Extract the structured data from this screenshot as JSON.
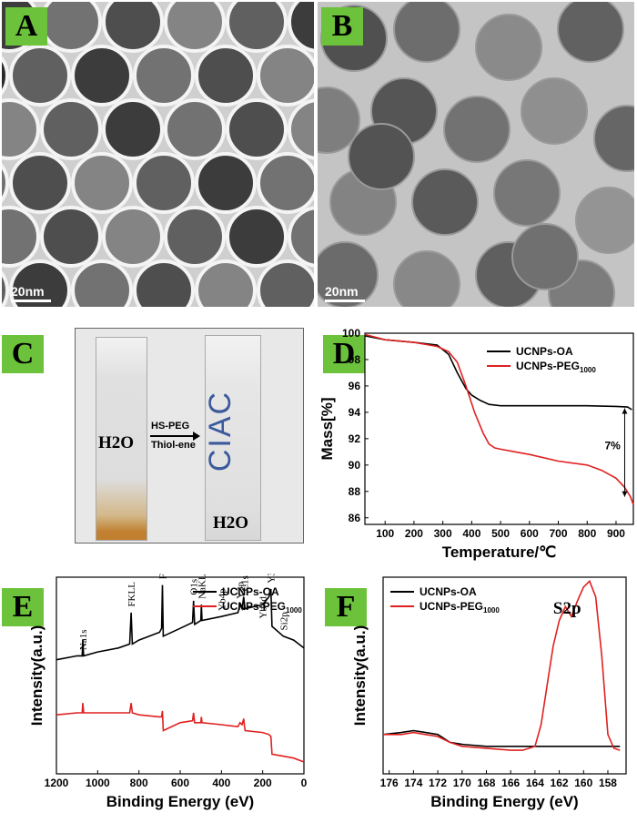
{
  "panels": {
    "A": {
      "label": "A",
      "scale": "20nm"
    },
    "B": {
      "label": "B",
      "scale": "20nm"
    },
    "C": {
      "label": "C",
      "arrow_top": "HS-PEG",
      "arrow_bottom": "Thiol-ene",
      "left_label": "H2O",
      "right_label": "H2O",
      "cuvette_text": "CIAC"
    },
    "D": {
      "label": "D",
      "annotation": "7%"
    },
    "E": {
      "label": "E"
    },
    "F": {
      "label": "F",
      "annotation": "S2p"
    }
  },
  "colors": {
    "oa": "#000000",
    "peg": "#e02020",
    "tag": "#6cc23a"
  },
  "chart_data": [
    {
      "id": "D",
      "type": "line",
      "xlabel": "Temperature/℃",
      "ylabel": "Mass[%]",
      "xlim": [
        30,
        960
      ],
      "ylim": [
        85.5,
        100
      ],
      "xticks": [
        100,
        200,
        300,
        400,
        500,
        600,
        700,
        800,
        900
      ],
      "yticks": [
        86,
        88,
        90,
        92,
        94,
        96,
        98,
        100
      ],
      "legend": "top-right",
      "series": [
        {
          "name": "UCNPs-OA",
          "color": "#000000",
          "x": [
            30,
            100,
            200,
            280,
            320,
            350,
            380,
            400,
            430,
            460,
            500,
            600,
            700,
            800,
            900,
            940,
            955
          ],
          "y": [
            99.8,
            99.5,
            99.3,
            99.1,
            98.4,
            97.0,
            95.8,
            95.3,
            94.9,
            94.6,
            94.5,
            94.5,
            94.5,
            94.5,
            94.45,
            94.4,
            94.2
          ]
        },
        {
          "name": "UCNPs-PEG1000",
          "color": "#e02020",
          "x": [
            30,
            100,
            200,
            280,
            320,
            350,
            380,
            410,
            440,
            460,
            480,
            500,
            550,
            600,
            700,
            800,
            850,
            900,
            930,
            950,
            960
          ],
          "y": [
            99.9,
            99.5,
            99.3,
            99.0,
            98.6,
            97.8,
            96.0,
            94.0,
            92.4,
            91.6,
            91.3,
            91.2,
            91.0,
            90.8,
            90.3,
            90.0,
            89.6,
            89.0,
            88.3,
            87.6,
            87.0
          ]
        }
      ]
    },
    {
      "id": "E",
      "type": "line",
      "xlabel": "Binding Energy (eV)",
      "ylabel": "Intensity(a.u.)",
      "xlim": [
        1200,
        0
      ],
      "ylim": [
        0,
        100
      ],
      "xticks": [
        1200,
        1000,
        800,
        600,
        400,
        200,
        0
      ],
      "legend": "top-right",
      "peaks": [
        "Na1s",
        "FKLL",
        "F1s",
        "O1s",
        "NaKLL",
        "Yb4p",
        "Y3p",
        "C1s",
        "Y3d",
        "Yb4d",
        "Si2p"
      ],
      "series": [
        {
          "name": "UCNPs-OA",
          "color": "#000000",
          "x": [
            1200,
            1100,
            1075,
            1072,
            1068,
            1000,
            900,
            845,
            838,
            832,
            800,
            700,
            690,
            686,
            682,
            600,
            540,
            535,
            530,
            500,
            497,
            494,
            400,
            320,
            310,
            300,
            292,
            288,
            285,
            200,
            170,
            160,
            155,
            100,
            50,
            0
          ],
          "y": [
            58,
            60,
            60,
            68,
            60,
            62,
            64,
            66,
            82,
            66,
            68,
            72,
            74,
            96,
            70,
            74,
            77,
            88,
            76,
            78,
            86,
            78,
            80,
            82,
            86,
            84,
            90,
            86,
            84,
            86,
            90,
            94,
            75,
            70,
            68,
            64
          ]
        },
        {
          "name": "UCNPs-PEG1000",
          "color": "#e02020",
          "x": [
            1200,
            1100,
            1075,
            1072,
            1068,
            1000,
            900,
            845,
            838,
            832,
            800,
            700,
            690,
            686,
            682,
            600,
            540,
            535,
            530,
            500,
            497,
            494,
            400,
            320,
            310,
            300,
            292,
            288,
            285,
            200,
            170,
            160,
            155,
            100,
            50,
            0
          ],
          "y": [
            30,
            31,
            31,
            36,
            31,
            31,
            31,
            31,
            36,
            31,
            30,
            29,
            29,
            32,
            22,
            26,
            27,
            31,
            26,
            26,
            29,
            26,
            25,
            24,
            26,
            25,
            28,
            24,
            22,
            21,
            20,
            19,
            10,
            9,
            8,
            6
          ]
        }
      ]
    },
    {
      "id": "F",
      "type": "line",
      "xlabel": "Binding Energy (eV)",
      "ylabel": "Intensity(a.u.)",
      "xlim": [
        176.5,
        156.5
      ],
      "ylim": [
        0,
        100
      ],
      "xticks": [
        176,
        174,
        172,
        170,
        168,
        166,
        164,
        162,
        160,
        158
      ],
      "legend": "top-left",
      "series": [
        {
          "name": "UCNPs-OA",
          "color": "#000000",
          "x": [
            176.5,
            175,
            174,
            173,
            172,
            171.5,
            171,
            170,
            168,
            166,
            164,
            162,
            160,
            158,
            157
          ],
          "y": [
            20,
            21,
            22,
            21,
            20,
            18,
            16,
            15,
            14,
            14,
            14,
            14,
            14,
            14,
            14
          ]
        },
        {
          "name": "UCNPs-PEG1000",
          "color": "#e02020",
          "x": [
            176.5,
            175,
            174,
            173,
            172,
            171,
            170,
            168,
            166,
            165,
            164,
            163.5,
            163,
            162.5,
            162,
            161.5,
            161,
            160.5,
            160,
            159.5,
            159,
            158.5,
            158,
            157.5,
            157
          ],
          "y": [
            20,
            20,
            21,
            20,
            19,
            16,
            14,
            13,
            12,
            12,
            14,
            25,
            45,
            65,
            78,
            85,
            80,
            88,
            95,
            98,
            90,
            60,
            20,
            13,
            12
          ]
        }
      ]
    }
  ]
}
